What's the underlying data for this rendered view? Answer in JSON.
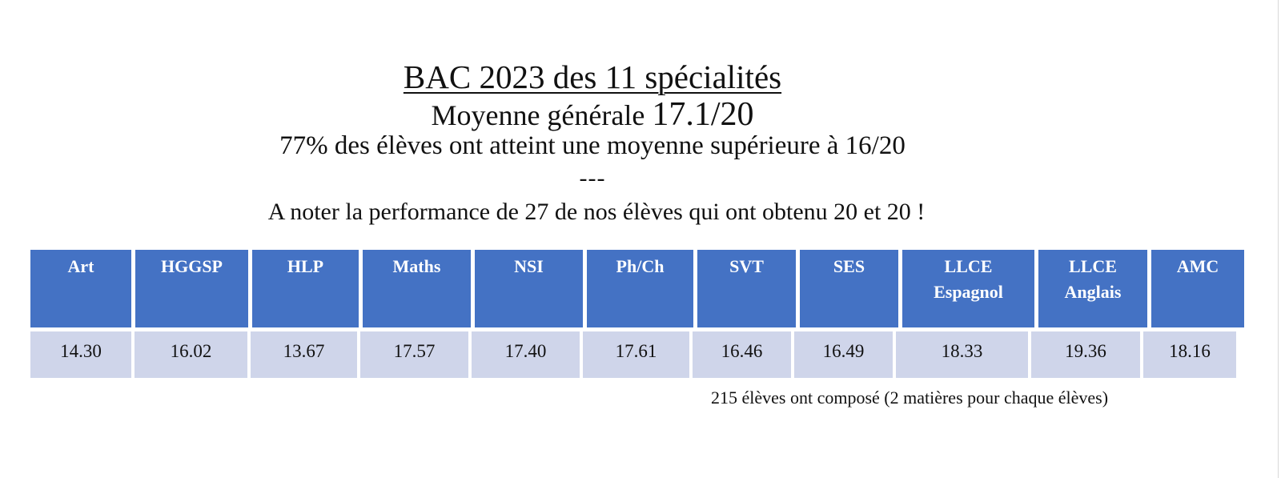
{
  "page": {
    "title": "BAC 2023 des 11 spécialités",
    "subtitle_label": "Moyenne générale ",
    "subtitle_value": "17.1/20",
    "stat_line": "77% des élèves ont atteint une moyenne supérieure à 16/20",
    "separator": "---",
    "note": "A noter la performance de 27 de nos élèves qui ont obtenu 20 et 20 !",
    "footnote": "215 élèves ont composé (2 matières pour chaque élèves)"
  },
  "table": {
    "headers": [
      {
        "line1": "Art",
        "line2": ""
      },
      {
        "line1": "HGGSP",
        "line2": ""
      },
      {
        "line1": "HLP",
        "line2": ""
      },
      {
        "line1": "Maths",
        "line2": ""
      },
      {
        "line1": "NSI",
        "line2": ""
      },
      {
        "line1": "Ph/Ch",
        "line2": ""
      },
      {
        "line1": "SVT",
        "line2": ""
      },
      {
        "line1": "SES",
        "line2": ""
      },
      {
        "line1": "LLCE",
        "line2": "Espagnol"
      },
      {
        "line1": "LLCE",
        "line2": "Anglais"
      },
      {
        "line1": "AMC",
        "line2": ""
      }
    ],
    "values": [
      "14.30",
      "16.02",
      "13.67",
      "17.57",
      "17.40",
      "17.61",
      "16.46",
      "16.49",
      "18.33",
      "19.36",
      "18.16"
    ]
  },
  "colors": {
    "header_bg": "#4472c4",
    "header_text": "#ffffff",
    "row_bg": "#cfd5ea",
    "text": "#111111"
  }
}
